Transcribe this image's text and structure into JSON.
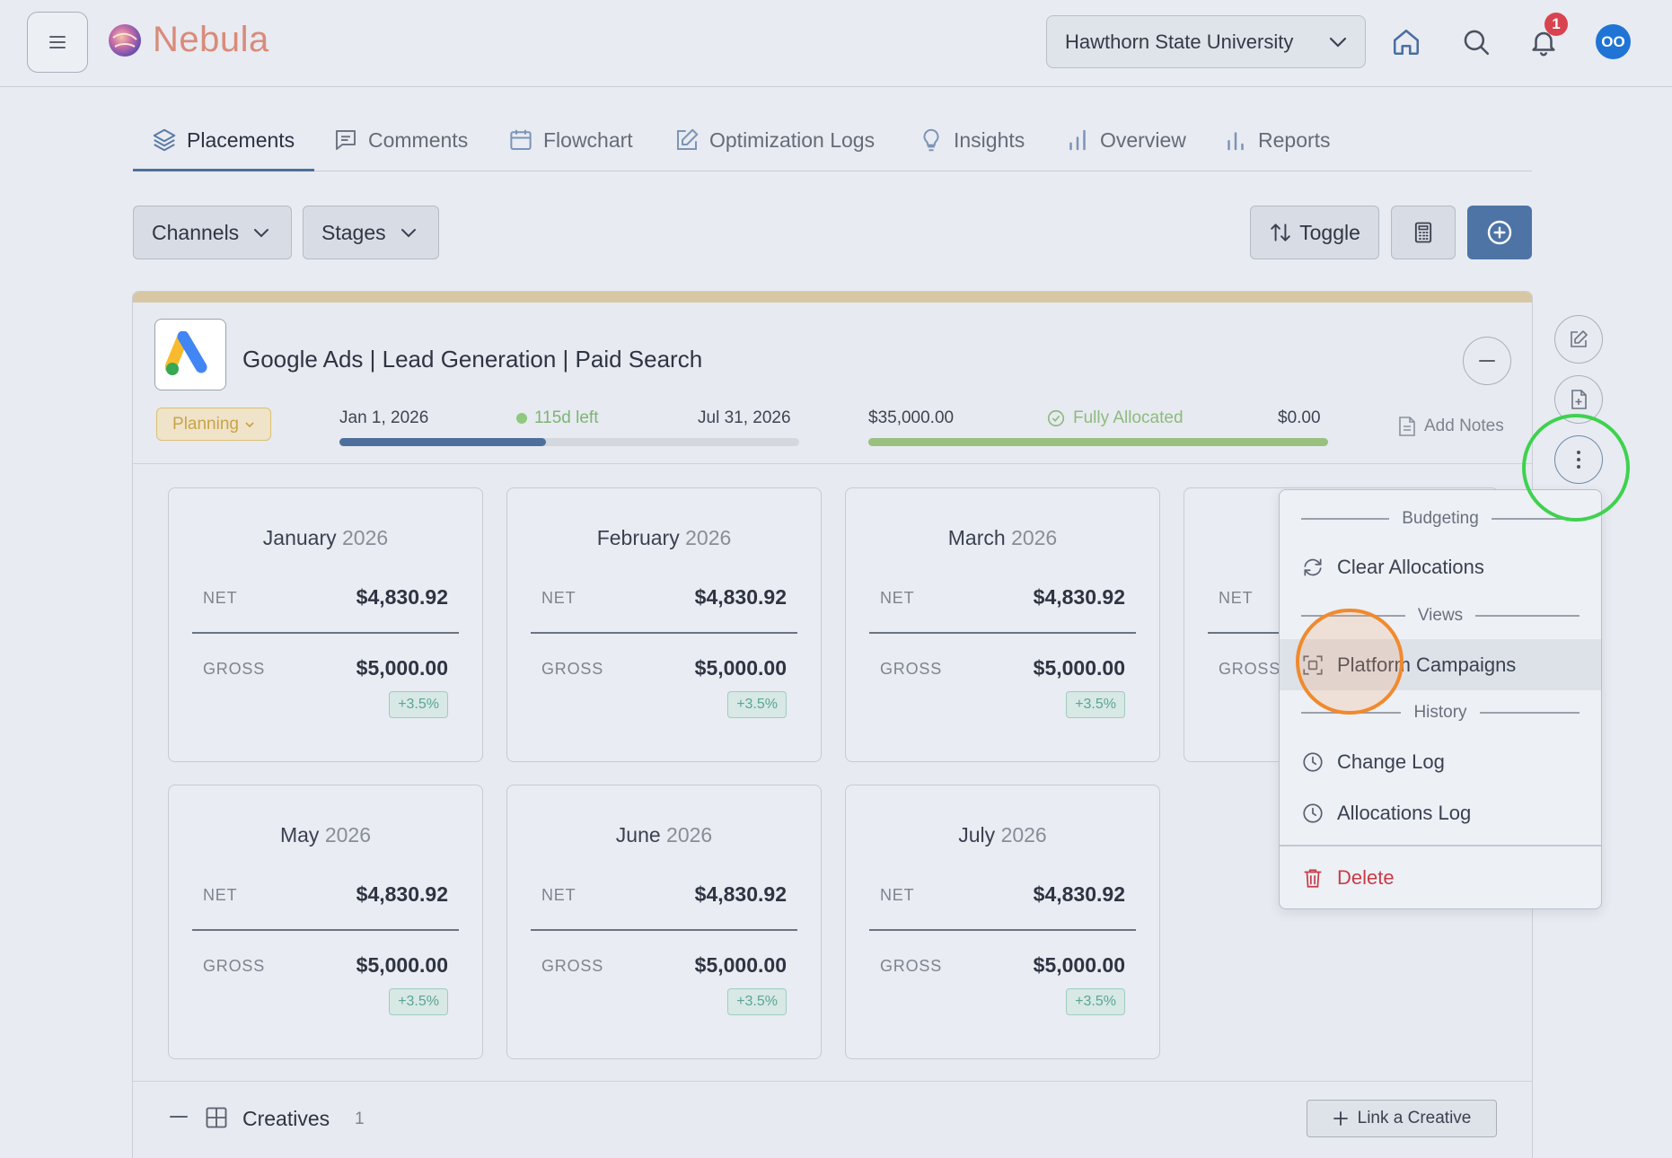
{
  "app": {
    "name": "Nebula"
  },
  "header": {
    "org_selected": "Hawthorn State University",
    "notification_count": "1",
    "avatar_initials": "OO"
  },
  "tabs": [
    {
      "label": "Placements",
      "icon": "layers-icon",
      "active": true
    },
    {
      "label": "Comments",
      "icon": "comment-icon"
    },
    {
      "label": "Flowchart",
      "icon": "calendar-icon"
    },
    {
      "label": "Optimization Logs",
      "icon": "edit-icon"
    },
    {
      "label": "Insights",
      "icon": "lightbulb-icon"
    },
    {
      "label": "Overview",
      "icon": "bar-chart-icon"
    },
    {
      "label": "Reports",
      "icon": "bar-chart-icon"
    }
  ],
  "toolbar": {
    "channels_label": "Channels",
    "stages_label": "Stages",
    "toggle_label": "Toggle"
  },
  "placement": {
    "title": "Google Ads | Lead Generation | Paid Search",
    "status": "Planning",
    "start_date": "Jan 1, 2026",
    "days_left": "115d left",
    "end_date": "Jul 31, 2026",
    "time_progress": 0.45,
    "budget": "$35,000.00",
    "allocation_status": "Fully Allocated",
    "remaining": "$0.00",
    "budget_progress": 1.0,
    "add_notes_label": "Add Notes",
    "colors": {
      "time_bar": "#4d6f9c",
      "budget_bar": "#99c07e",
      "status": "#c9a349"
    }
  },
  "months": [
    {
      "month": "January",
      "year": "2026",
      "net_label": "NET",
      "net": "$4,830.92",
      "gross_label": "GROSS",
      "gross": "$5,000.00",
      "change": "+3.5%"
    },
    {
      "month": "February",
      "year": "2026",
      "net_label": "NET",
      "net": "$4,830.92",
      "gross_label": "GROSS",
      "gross": "$5,000.00",
      "change": "+3.5%"
    },
    {
      "month": "March",
      "year": "2026",
      "net_label": "NET",
      "net": "$4,830.92",
      "gross_label": "GROSS",
      "gross": "$5,000.00",
      "change": "+3.5%"
    },
    {
      "month": "",
      "year": "",
      "net_label": "NET",
      "net": "",
      "gross_label": "GROSS",
      "gross": "",
      "change": ""
    },
    {
      "month": "May",
      "year": "2026",
      "net_label": "NET",
      "net": "$4,830.92",
      "gross_label": "GROSS",
      "gross": "$5,000.00",
      "change": "+3.5%"
    },
    {
      "month": "June",
      "year": "2026",
      "net_label": "NET",
      "net": "$4,830.92",
      "gross_label": "GROSS",
      "gross": "$5,000.00",
      "change": "+3.5%"
    },
    {
      "month": "July",
      "year": "2026",
      "net_label": "NET",
      "net": "$4,830.92",
      "gross_label": "GROSS",
      "gross": "$5,000.00",
      "change": "+3.5%"
    }
  ],
  "creatives": {
    "label": "Creatives",
    "count": "1",
    "link_label": "Link a Creative"
  },
  "dropdown": {
    "budgeting_header": "Budgeting",
    "clear_allocations": "Clear Allocations",
    "views_header": "Views",
    "platform_campaigns": "Platform Campaigns",
    "history_header": "History",
    "change_log": "Change Log",
    "allocations_log": "Allocations Log",
    "delete": "Delete"
  }
}
